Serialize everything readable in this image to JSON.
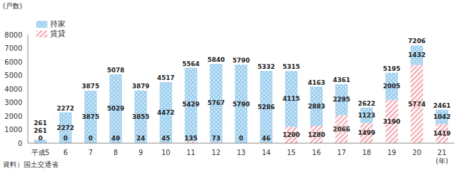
{
  "chart_data": {
    "type": "bar",
    "stacked": true,
    "data_labels": true,
    "grid": false,
    "legend": "upper left",
    "y_label": "(戸数)",
    "x_label": "(年)",
    "source": "資料）国土交通省",
    "categories": [
      "平成5",
      "6",
      "7",
      "8",
      "9",
      "10",
      "11",
      "12",
      "13",
      "14",
      "15",
      "16",
      "17",
      "18",
      "19",
      "20",
      "21"
    ],
    "series": [
      {
        "name": "持家",
        "color": "#9fd0ef",
        "marker": "dots",
        "values": [
          261,
          2272,
          3875,
          5029,
          3855,
          4472,
          5429,
          5767,
          5790,
          5286,
          4115,
          2883,
          2295,
          1123,
          2005,
          1432,
          1042
        ]
      },
      {
        "name": "賃貸",
        "color": "#e8828f",
        "marker": "hatch",
        "values": [
          0,
          0,
          0,
          49,
          24,
          45,
          135,
          73,
          0,
          46,
          1200,
          1280,
          2066,
          1499,
          3190,
          5774,
          1419
        ]
      }
    ],
    "totals": [
      261,
      2272,
      3875,
      5078,
      3879,
      4517,
      5564,
      5840,
      5790,
      5332,
      5315,
      4163,
      4361,
      2622,
      5195,
      7206,
      2461
    ],
    "ylim": [
      0,
      8000
    ],
    "yticks": [
      0,
      1000,
      2000,
      3000,
      4000,
      5000,
      6000,
      7000,
      8000
    ]
  }
}
